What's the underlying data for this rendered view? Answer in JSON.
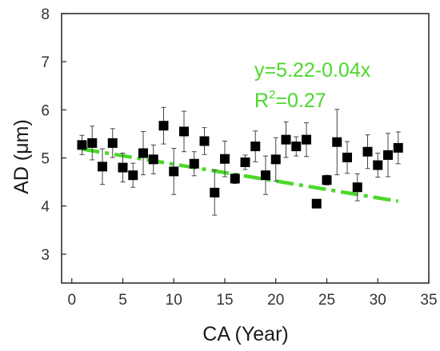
{
  "chart_data": {
    "type": "scatter",
    "xlabel": "CA (Year)",
    "ylabel": "AD (μm)",
    "xlim": [
      -1,
      35
    ],
    "ylim": [
      2.4,
      8
    ],
    "xticks": [
      0,
      5,
      10,
      15,
      20,
      25,
      30,
      35
    ],
    "yticks": [
      3,
      4,
      5,
      6,
      7,
      8
    ],
    "grid": false,
    "marker_color": "#000000",
    "fit_color": "#4ad82a",
    "annotation": {
      "equation": "y=5.22-0.04x",
      "r2_prefix": "R",
      "r2_sup": "2",
      "r2_value": "=0.27"
    },
    "fit": {
      "intercept": 5.22,
      "slope": -0.035,
      "x_range": [
        1,
        32
      ]
    },
    "points": [
      {
        "x": 1,
        "y": 5.27,
        "err": 0.2
      },
      {
        "x": 2,
        "y": 5.31,
        "err": 0.35
      },
      {
        "x": 3,
        "y": 4.82,
        "err": 0.37
      },
      {
        "x": 4,
        "y": 5.31,
        "err": 0.3
      },
      {
        "x": 5,
        "y": 4.8,
        "err": 0.3
      },
      {
        "x": 6,
        "y": 4.64,
        "err": 0.25
      },
      {
        "x": 7,
        "y": 5.1,
        "err": 0.45
      },
      {
        "x": 8,
        "y": 4.97,
        "err": 0.3
      },
      {
        "x": 9,
        "y": 5.67,
        "err": 0.38
      },
      {
        "x": 10,
        "y": 4.72,
        "err": 0.48
      },
      {
        "x": 11,
        "y": 5.55,
        "err": 0.42
      },
      {
        "x": 12,
        "y": 4.88,
        "err": 0.25
      },
      {
        "x": 13,
        "y": 5.35,
        "err": 0.28
      },
      {
        "x": 14,
        "y": 4.28,
        "err": 0.47
      },
      {
        "x": 15,
        "y": 4.98,
        "err": 0.37
      },
      {
        "x": 16,
        "y": 4.57,
        "err": 0.1
      },
      {
        "x": 17,
        "y": 4.91,
        "err": 0.15
      },
      {
        "x": 18,
        "y": 5.24,
        "err": 0.32
      },
      {
        "x": 19,
        "y": 4.64,
        "err": 0.4
      },
      {
        "x": 20,
        "y": 4.97,
        "err": 0.45
      },
      {
        "x": 21,
        "y": 5.38,
        "err": 0.37
      },
      {
        "x": 22,
        "y": 5.24,
        "err": 0.2
      },
      {
        "x": 23,
        "y": 5.38,
        "err": 0.35
      },
      {
        "x": 24,
        "y": 4.05,
        "err": 0
      },
      {
        "x": 25,
        "y": 4.54,
        "err": 0.1
      },
      {
        "x": 26,
        "y": 5.33,
        "err": 0.68
      },
      {
        "x": 27,
        "y": 5.01,
        "err": 0.33
      },
      {
        "x": 28,
        "y": 4.39,
        "err": 0.28
      },
      {
        "x": 29,
        "y": 5.13,
        "err": 0.35
      },
      {
        "x": 30,
        "y": 4.85,
        "err": 0.25
      },
      {
        "x": 31,
        "y": 5.06,
        "err": 0.45
      },
      {
        "x": 32,
        "y": 5.21,
        "err": 0.33
      }
    ]
  }
}
